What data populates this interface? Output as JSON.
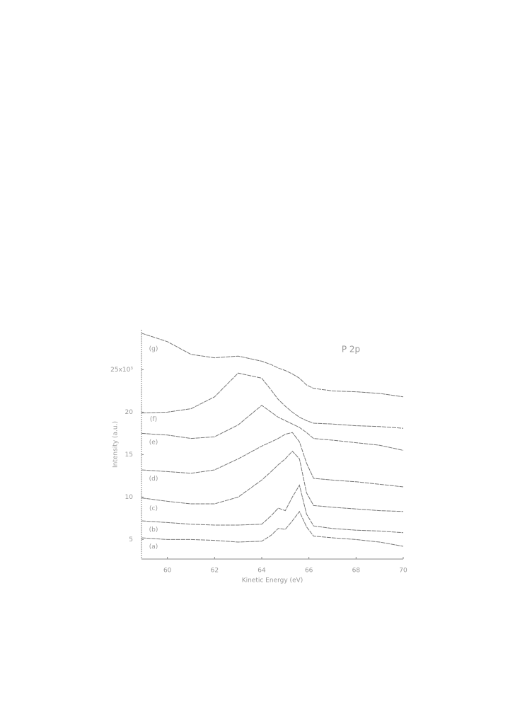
{
  "chart_data": {
    "type": "line",
    "annotation": "P 2p",
    "xlabel": "Kinetic Energy (eV)",
    "ylabel": "Intensity (a.u.)",
    "x": [
      58.9,
      60,
      61,
      62,
      63,
      64,
      64.4,
      64.7,
      65,
      65.3,
      65.6,
      65.9,
      66.2,
      67,
      68,
      69,
      70
    ],
    "series": [
      {
        "name": "(a)",
        "color": "#777777",
        "values": [
          5.2,
          5.0,
          5.0,
          4.9,
          4.7,
          4.8,
          5.5,
          6.3,
          6.2,
          7.2,
          8.3,
          6.5,
          5.4,
          5.2,
          5.0,
          4.7,
          4.2
        ]
      },
      {
        "name": "(b)",
        "color": "#777777",
        "values": [
          7.2,
          7.0,
          6.8,
          6.7,
          6.7,
          6.8,
          7.8,
          8.7,
          8.4,
          10.0,
          11.4,
          8.0,
          6.6,
          6.3,
          6.1,
          6.0,
          5.8
        ]
      },
      {
        "name": "(c)",
        "color": "#777777",
        "values": [
          9.9,
          9.5,
          9.2,
          9.2,
          10.0,
          12.0,
          13.0,
          13.8,
          14.5,
          15.4,
          14.5,
          10.5,
          9.0,
          8.8,
          8.6,
          8.4,
          8.3
        ]
      },
      {
        "name": "(d)",
        "color": "#777777",
        "values": [
          13.2,
          13.0,
          12.8,
          13.2,
          14.5,
          16.0,
          16.5,
          16.9,
          17.4,
          17.6,
          16.5,
          14.0,
          12.2,
          12.0,
          11.8,
          11.5,
          11.2
        ]
      },
      {
        "name": "(e)",
        "color": "#777777",
        "values": [
          17.5,
          17.3,
          16.9,
          17.1,
          18.5,
          20.8,
          20.0,
          19.4,
          19.0,
          18.6,
          18.2,
          17.6,
          16.9,
          16.7,
          16.4,
          16.1,
          15.5
        ]
      },
      {
        "name": "(f)",
        "color": "#777777",
        "values": [
          19.9,
          20.0,
          20.4,
          21.8,
          24.6,
          24.0,
          22.6,
          21.5,
          20.7,
          20.0,
          19.4,
          19.0,
          18.7,
          18.6,
          18.4,
          18.3,
          18.1
        ]
      },
      {
        "name": "(g)",
        "color": "#777777",
        "values": [
          29.3,
          28.3,
          26.8,
          26.4,
          26.6,
          26.0,
          25.6,
          25.2,
          24.9,
          24.5,
          24.0,
          23.2,
          22.8,
          22.5,
          22.4,
          22.2,
          21.8
        ]
      }
    ],
    "xlim": [
      58.9,
      70
    ],
    "xticks": [
      60,
      62,
      64,
      66,
      68,
      70
    ],
    "ylim": [
      2.7,
      29.7
    ],
    "yticks": [
      5,
      10,
      15,
      20,
      {
        "value": 25,
        "label": "25x10³"
      }
    ],
    "grid": false
  }
}
